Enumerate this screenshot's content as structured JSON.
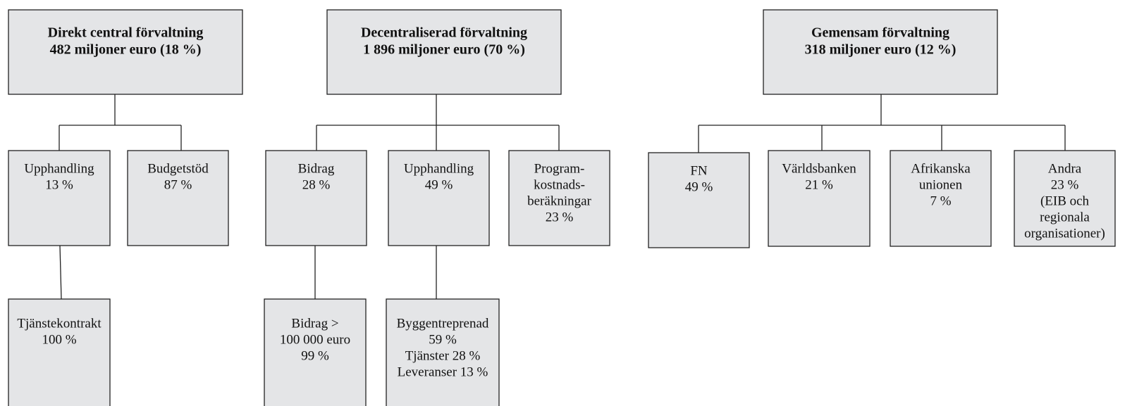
{
  "nodes": [
    {
      "lines": [
        "Direkt central förvaltning",
        "482 miljoner euro (18 %)"
      ]
    },
    {
      "lines": [
        "Decentraliserad förvaltning",
        "1 896 miljoner euro (70 %)"
      ]
    },
    {
      "lines": [
        "Gemensam förvaltning",
        "318 miljoner euro (12 %)"
      ]
    },
    {
      "lines": [
        "Upphandling",
        "13 %"
      ]
    },
    {
      "lines": [
        "Budgetstöd",
        "87 %"
      ]
    },
    {
      "lines": [
        "Bidrag",
        "28 %"
      ]
    },
    {
      "lines": [
        "Upphandling",
        "49 %"
      ]
    },
    {
      "lines": [
        "Program-",
        "kostnads-",
        "beräkningar",
        "23 %"
      ]
    },
    {
      "lines": [
        "FN",
        "49 %"
      ]
    },
    {
      "lines": [
        "Världsbanken",
        "21 %"
      ]
    },
    {
      "lines": [
        "Afrikanska",
        "unionen",
        "7 %"
      ]
    },
    {
      "lines": [
        "Andra",
        "23 %",
        "(EIB och",
        "regionala",
        "organisationer)"
      ]
    },
    {
      "lines": [
        "Tjänstekontrakt",
        "100 %"
      ]
    },
    {
      "lines": [
        "Bidrag >",
        "100 000 euro",
        "99 %"
      ]
    },
    {
      "lines": [
        "Byggentreprenad",
        "59 %",
        "Tjänster 28 %",
        "Leveranser 13 %"
      ]
    }
  ]
}
